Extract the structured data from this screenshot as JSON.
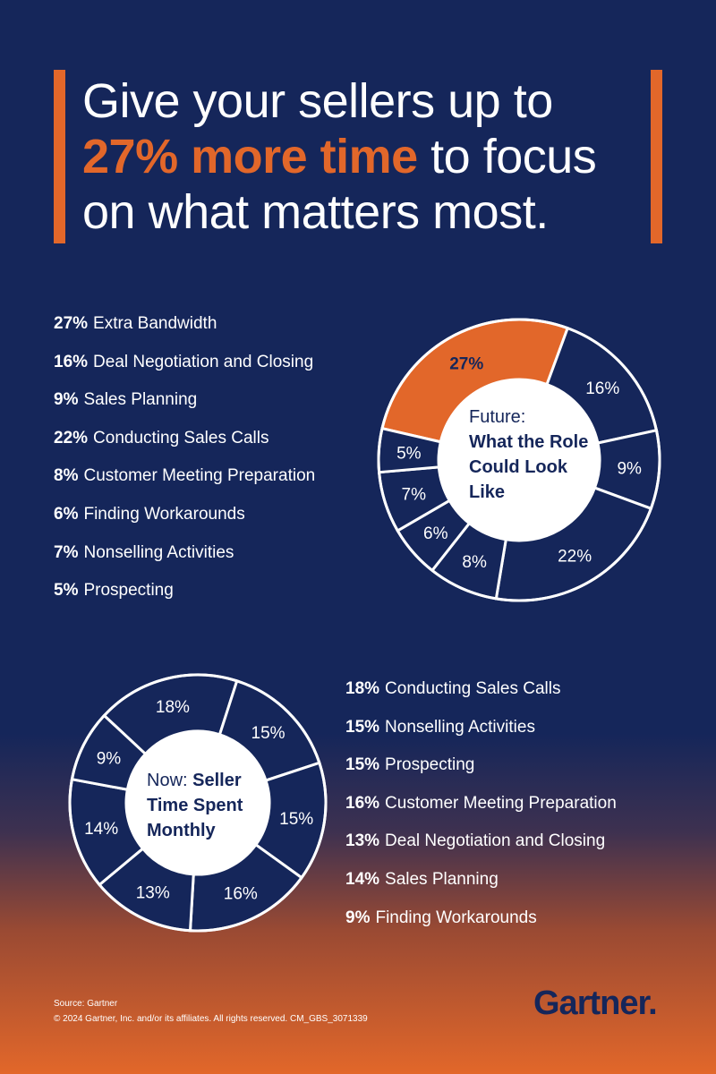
{
  "headline": {
    "line1": "Give your sellers up to",
    "highlight": "27% more time",
    "line2_rest": " to focus",
    "line3": "on what matters most."
  },
  "colors": {
    "navy": "#15265a",
    "orange": "#e2672a",
    "white": "#ffffff"
  },
  "chart_data": [
    {
      "type": "pie",
      "title": "Future: What the Role Could Look Like",
      "center": {
        "prefix": "Future:",
        "bold": "What the Role Could Look Like"
      },
      "slices": [
        {
          "label": "Extra Bandwidth",
          "value": 27,
          "ring_label": "27%",
          "highlight": true
        },
        {
          "label": "Deal Negotiation and Closing",
          "value": 16,
          "ring_label": "16%"
        },
        {
          "label": "Sales Planning",
          "value": 9,
          "ring_label": "9%"
        },
        {
          "label": "Conducting Sales Calls",
          "value": 22,
          "ring_label": "22%"
        },
        {
          "label": "Customer Meeting Preparation",
          "value": 8,
          "ring_label": "8%"
        },
        {
          "label": "Finding Workarounds",
          "value": 6,
          "ring_label": "6%"
        },
        {
          "label": "Nonselling Activities",
          "value": 7,
          "ring_label": "7%"
        },
        {
          "label": "Prospecting",
          "value": 5,
          "ring_label": "5%"
        }
      ],
      "legend": [
        {
          "pct": "27%",
          "label": "Extra Bandwidth"
        },
        {
          "pct": "16%",
          "label": "Deal Negotiation and Closing"
        },
        {
          "pct": "9%",
          "label": "Sales Planning"
        },
        {
          "pct": "22%",
          "label": "Conducting Sales Calls"
        },
        {
          "pct": "8%",
          "label": "Customer Meeting Preparation"
        },
        {
          "pct": "6%",
          "label": "Finding Workarounds"
        },
        {
          "pct": "7%",
          "label": "Nonselling Activities"
        },
        {
          "pct": "5%",
          "label": "Prospecting"
        }
      ]
    },
    {
      "type": "pie",
      "title": "Now: Seller Time Spent Monthly",
      "center": {
        "prefix": "Now:",
        "bold": "Seller Time Spent Monthly"
      },
      "slices": [
        {
          "label": "Conducting Sales Calls",
          "value": 18,
          "ring_label": "18%"
        },
        {
          "label": "Nonselling Activities",
          "value": 15,
          "ring_label": "15%"
        },
        {
          "label": "Prospecting",
          "value": 15,
          "ring_label": "15%"
        },
        {
          "label": "Customer Meeting Preparation",
          "value": 16,
          "ring_label": "16%"
        },
        {
          "label": "Deal Negotiation and Closing",
          "value": 13,
          "ring_label": "13%"
        },
        {
          "label": "Sales Planning",
          "value": 14,
          "ring_label": "14%"
        },
        {
          "label": "Finding Workarounds",
          "value": 9,
          "ring_label": "9%"
        }
      ],
      "legend": [
        {
          "pct": "18%",
          "label": "Conducting Sales Calls"
        },
        {
          "pct": "15%",
          "label": "Nonselling Activities"
        },
        {
          "pct": "15%",
          "label": "Prospecting"
        },
        {
          "pct": "16%",
          "label": "Customer Meeting Preparation"
        },
        {
          "pct": "13%",
          "label": "Deal Negotiation and Closing"
        },
        {
          "pct": "14%",
          "label": "Sales Planning"
        },
        {
          "pct": "9%",
          "label": "Finding Workarounds"
        }
      ]
    }
  ],
  "footer": {
    "source": "Source: Gartner",
    "copyright": "© 2024 Gartner, Inc. and/or its affiliates. All rights reserved. CM_GBS_3071339"
  },
  "brand": {
    "name": "Gartner",
    "dot": "."
  }
}
